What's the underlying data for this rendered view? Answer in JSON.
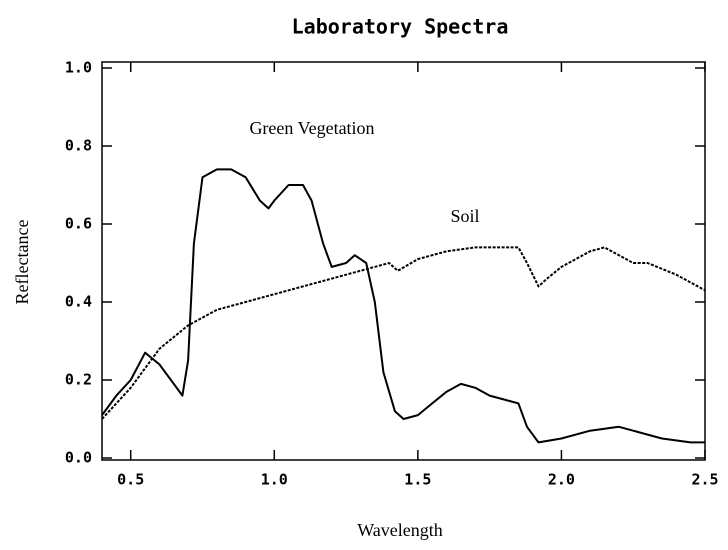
{
  "chart_data": {
    "type": "line",
    "title": "Laboratory Spectra",
    "x_label": "Wavelength",
    "y_label": "Reflectance",
    "xlim": [
      0.4,
      2.5
    ],
    "ylim": [
      0,
      1
    ],
    "xticks": [
      0.5,
      {
        "value": 1,
        "label": "1.0"
      },
      1.5,
      {
        "value": 2,
        "label": "2.0"
      },
      2.5
    ],
    "yticks": [
      {
        "value": 0,
        "label": "0.0"
      },
      0.2,
      0.4,
      0.6,
      0.8,
      {
        "value": 1,
        "label": "1.0"
      }
    ],
    "series": [
      {
        "name": "Green Vegetation",
        "color": "#000000",
        "x": [
          0.4,
          0.45,
          0.5,
          0.55,
          0.6,
          0.65,
          0.68,
          0.7,
          0.72,
          0.75,
          0.8,
          0.85,
          0.9,
          0.95,
          0.98,
          1.0,
          1.05,
          1.1,
          1.13,
          1.17,
          1.2,
          1.25,
          1.28,
          1.32,
          1.35,
          1.38,
          1.42,
          1.45,
          1.5,
          1.55,
          1.6,
          1.65,
          1.7,
          1.75,
          1.8,
          1.85,
          1.88,
          1.92,
          2.0,
          2.1,
          2.2,
          2.25,
          2.35,
          2.45,
          2.5
        ],
        "values": [
          0.11,
          0.16,
          0.2,
          0.27,
          0.24,
          0.19,
          0.16,
          0.25,
          0.55,
          0.72,
          0.74,
          0.74,
          0.72,
          0.66,
          0.64,
          0.66,
          0.7,
          0.7,
          0.66,
          0.55,
          0.49,
          0.5,
          0.52,
          0.5,
          0.4,
          0.22,
          0.12,
          0.1,
          0.11,
          0.14,
          0.17,
          0.19,
          0.18,
          0.16,
          0.15,
          0.14,
          0.08,
          0.04,
          0.05,
          0.07,
          0.08,
          0.07,
          0.05,
          0.04,
          0.04
        ]
      },
      {
        "name": "Soil",
        "color": "#000000",
        "x": [
          0.4,
          0.5,
          0.6,
          0.7,
          0.8,
          0.9,
          1.0,
          1.1,
          1.2,
          1.3,
          1.4,
          1.43,
          1.5,
          1.6,
          1.7,
          1.8,
          1.85,
          1.88,
          1.92,
          1.95,
          2.0,
          2.1,
          2.15,
          2.2,
          2.25,
          2.3,
          2.4,
          2.5
        ],
        "values": [
          0.1,
          0.18,
          0.28,
          0.34,
          0.38,
          0.4,
          0.42,
          0.44,
          0.46,
          0.48,
          0.5,
          0.48,
          0.51,
          0.53,
          0.54,
          0.54,
          0.54,
          0.5,
          0.44,
          0.46,
          0.49,
          0.53,
          0.54,
          0.52,
          0.5,
          0.5,
          0.47,
          0.43
        ]
      }
    ]
  }
}
